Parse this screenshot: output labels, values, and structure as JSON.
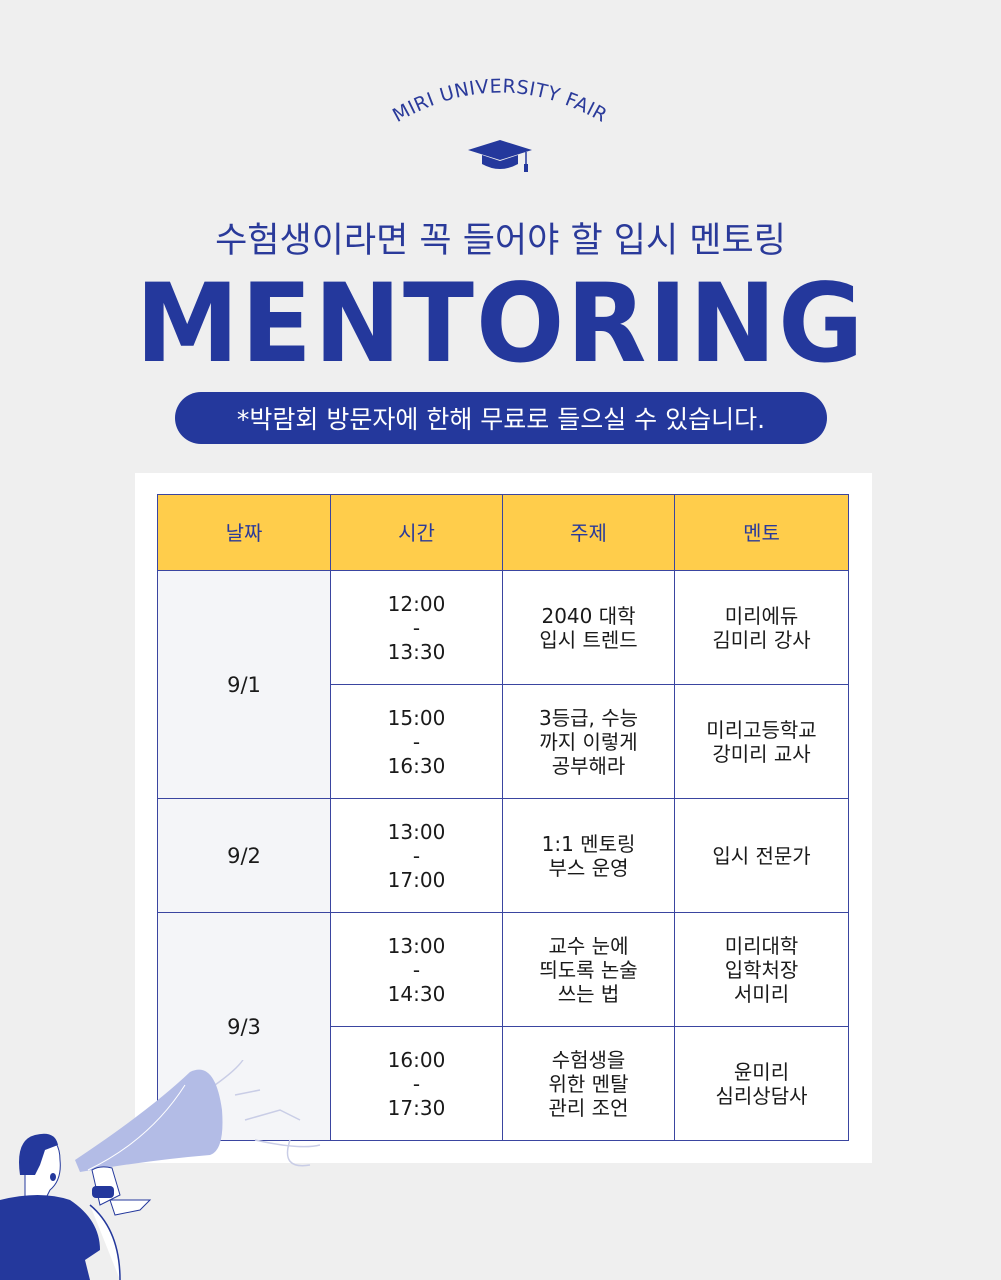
{
  "brand": "MIRI UNIVERSITY FAIR",
  "subtitle": "수험생이라면 꼭 들어야 할 입시 멘토링",
  "title": "MENTORING",
  "notice": "*박람회 방문자에 한해 무료로 들으실 수 있습니다.",
  "colors": {
    "primary": "#24389c",
    "header": "#ffcd4b",
    "background": "#efefef"
  },
  "table": {
    "headers": [
      "날짜",
      "시간",
      "주제",
      "멘토"
    ],
    "groups": [
      {
        "date": "9/1",
        "sessions": [
          {
            "time": [
              "12:00",
              "-",
              "13:30"
            ],
            "topic": [
              "2040 대학",
              "입시 트렌드"
            ],
            "mentor": [
              "미리에듀",
              "김미리 강사"
            ]
          },
          {
            "time": [
              "15:00",
              "-",
              "16:30"
            ],
            "topic": [
              "3등급, 수능",
              "까지 이렇게",
              "공부해라"
            ],
            "mentor": [
              "미리고등학교",
              "강미리 교사"
            ]
          }
        ]
      },
      {
        "date": "9/2",
        "sessions": [
          {
            "time": [
              "13:00",
              "-",
              "17:00"
            ],
            "topic": [
              "1:1 멘토링",
              "부스 운영"
            ],
            "mentor": [
              "입시 전문가"
            ]
          }
        ]
      },
      {
        "date": "9/3",
        "sessions": [
          {
            "time": [
              "13:00",
              "-",
              "14:30"
            ],
            "topic": [
              "교수 눈에",
              "띄도록 논술",
              "쓰는 법"
            ],
            "mentor": [
              "미리대학",
              "입학처장",
              "서미리"
            ]
          },
          {
            "time": [
              "16:00",
              "-",
              "17:30"
            ],
            "topic": [
              "수험생을",
              "위한 멘탈",
              "관리 조언"
            ],
            "mentor": [
              "윤미리",
              "심리상담사"
            ]
          }
        ]
      }
    ]
  },
  "illustration": "megaphone-man"
}
